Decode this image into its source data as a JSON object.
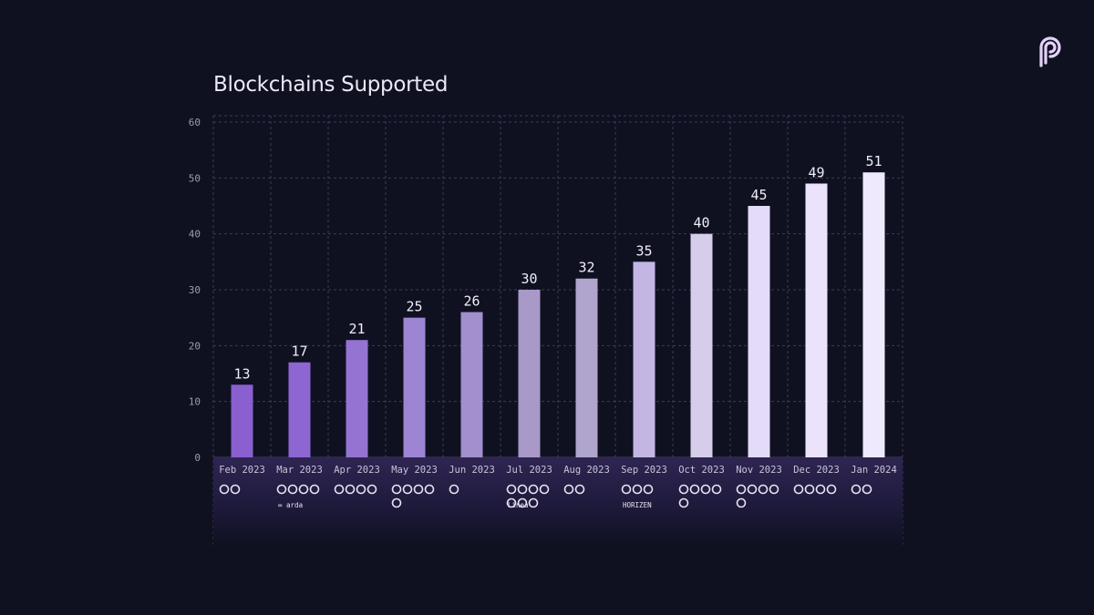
{
  "brand": {
    "logo_icon": "pyth-logo-icon",
    "color": "#e3d3f7"
  },
  "chart_data": {
    "type": "bar",
    "title": "Blockchains Supported",
    "categories": [
      "Feb 2023",
      "Mar 2023",
      "Apr 2023",
      "May 2023",
      "Jun 2023",
      "Jul 2023",
      "Aug 2023",
      "Sep 2023",
      "Oct 2023",
      "Nov 2023",
      "Dec 2023",
      "Jan 2024"
    ],
    "values": [
      13,
      17,
      21,
      25,
      26,
      30,
      32,
      35,
      40,
      45,
      49,
      51
    ],
    "ylim": [
      0,
      60
    ],
    "yticks": [
      "0",
      "10",
      "20",
      "30",
      "40",
      "50",
      "60"
    ],
    "grid": true,
    "bar_colors": [
      "#8a5fd0",
      "#8e66d2",
      "#9573d2",
      "#9d85d3",
      "#a18fce",
      "#a899c9",
      "#b0a5cd",
      "#c3b5e4",
      "#d6cdea",
      "#e3dbf7",
      "#eae3fb",
      "#efe9fd"
    ],
    "chain_logo_counts": [
      2,
      4,
      4,
      5,
      1,
      7,
      2,
      3,
      5,
      5,
      4,
      2
    ],
    "extra_labels": {
      "Mar 2023": "∞ arda",
      "Jul 2023": "Linea",
      "Sep 2023": "HORIZEN"
    }
  }
}
